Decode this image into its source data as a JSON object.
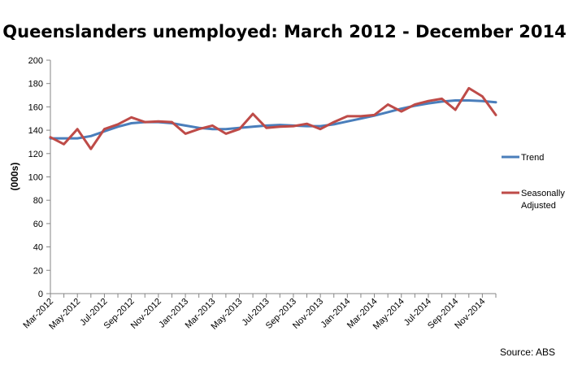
{
  "chart_data": {
    "type": "line",
    "title": "Queenslanders unemployed: March 2012 - December 2014",
    "xlabel": "",
    "ylabel": "(000s)",
    "ylim": [
      0,
      200
    ],
    "yticks": [
      0,
      20,
      40,
      60,
      80,
      100,
      120,
      140,
      160,
      180,
      200
    ],
    "x": [
      "Mar-2012",
      "Apr-2012",
      "May-2012",
      "Jun-2012",
      "Jul-2012",
      "Aug-2012",
      "Sep-2012",
      "Oct-2012",
      "Nov-2012",
      "Dec-2012",
      "Jan-2013",
      "Feb-2013",
      "Mar-2013",
      "Apr-2013",
      "May-2013",
      "Jun-2013",
      "Jul-2013",
      "Aug-2013",
      "Sep-2013",
      "Oct-2013",
      "Nov-2013",
      "Dec-2013",
      "Jan-2014",
      "Feb-2014",
      "Mar-2014",
      "Apr-2014",
      "May-2014",
      "Jun-2014",
      "Jul-2014",
      "Aug-2014",
      "Sep-2014",
      "Oct-2014",
      "Nov-2014",
      "Dec-2014"
    ],
    "xtick_labels": [
      "Mar-2012",
      "May-2012",
      "Jul-2012",
      "Sep-2012",
      "Nov-2012",
      "Jan-2013",
      "Mar-2013",
      "May-2013",
      "Jul-2013",
      "Sep-2013",
      "Nov-2013",
      "Jan-2014",
      "Mar-2014",
      "May-2014",
      "Jul-2014",
      "Sep-2014",
      "Nov-2014"
    ],
    "series": [
      {
        "name": "Trend",
        "color": "#4a7ebb",
        "values": [
          133,
          133,
          133,
          135,
          139,
          143,
          146,
          147,
          147,
          146,
          144,
          142,
          141,
          141,
          142,
          143,
          144,
          144.5,
          144,
          143.5,
          143.5,
          145,
          147.5,
          150,
          152.5,
          155.5,
          158.5,
          161,
          163,
          164.5,
          165.5,
          165.5,
          165,
          164
        ]
      },
      {
        "name": "Seasonally Adjusted",
        "color": "#be4b48",
        "values": [
          134,
          128,
          141,
          124,
          141,
          145,
          151,
          147,
          147.5,
          147,
          137,
          141,
          144,
          137,
          141,
          154,
          142,
          143,
          143.5,
          145.5,
          141,
          147,
          152,
          152,
          153,
          162,
          156,
          162,
          165,
          167,
          157.5,
          176,
          169,
          153
        ]
      }
    ],
    "legend_position": "right",
    "grid": false,
    "source": "Source: ABS"
  }
}
